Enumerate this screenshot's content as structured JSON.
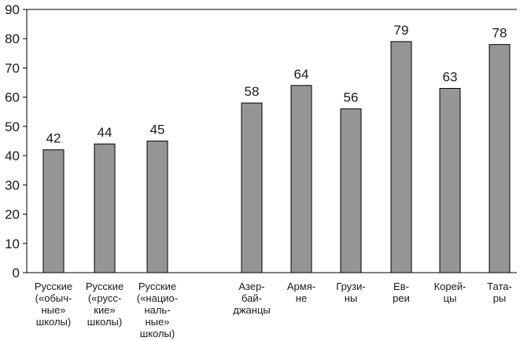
{
  "chart_data": {
    "type": "bar",
    "title": "",
    "xlabel": "",
    "ylabel": "",
    "ylim": [
      0,
      90
    ],
    "yticks": [
      0,
      10,
      20,
      30,
      40,
      50,
      60,
      70,
      80,
      90
    ],
    "grid": false,
    "bar_color": "#959595",
    "categories": [
      {
        "lines": [
          "Русские",
          "(«обыч-",
          "ные»",
          "школы)"
        ],
        "value": 42
      },
      {
        "lines": [
          "Русские",
          "(«русс-",
          "кие»",
          "школы)"
        ],
        "value": 44
      },
      {
        "lines": [
          "Русские",
          "(«нацио-",
          "наль-",
          "ные»",
          "школы)"
        ],
        "value": 45
      },
      {
        "lines": [
          "Азер-",
          "бай-",
          "джанцы"
        ],
        "value": 58
      },
      {
        "lines": [
          "Армя-",
          "не"
        ],
        "value": 64
      },
      {
        "lines": [
          "Грузи-",
          "ны"
        ],
        "value": 56
      },
      {
        "lines": [
          "Ев-",
          "реи"
        ],
        "value": 79
      },
      {
        "lines": [
          "Корей-",
          "цы"
        ],
        "value": 63
      },
      {
        "lines": [
          "Тата-",
          "ры"
        ],
        "value": 78
      }
    ]
  }
}
